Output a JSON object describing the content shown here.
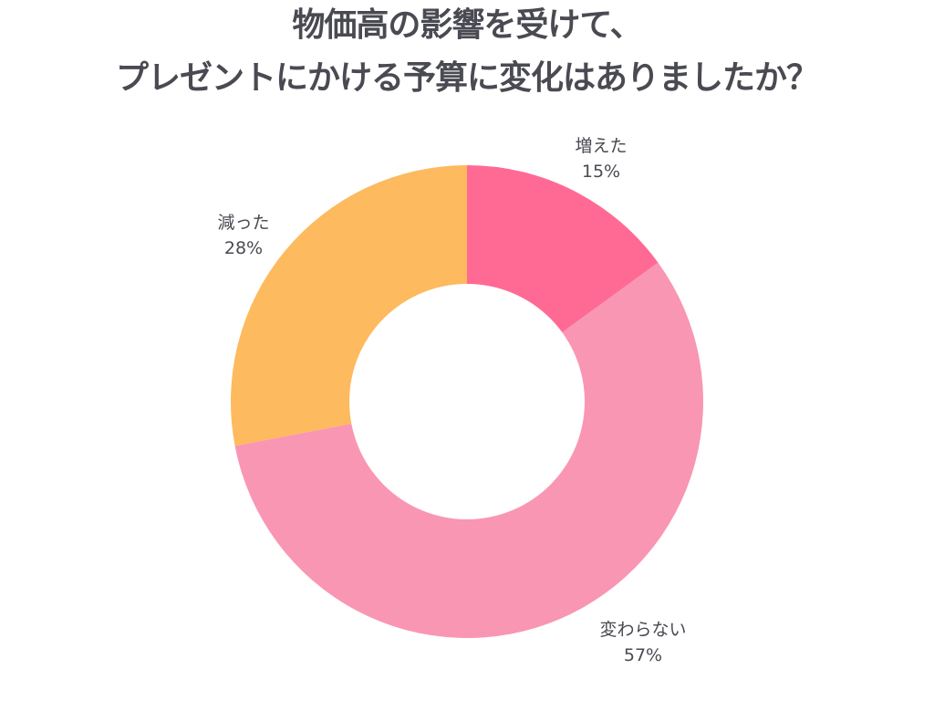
{
  "title": {
    "line1": "物価高の影響を受けて、",
    "line2": "プレゼントにかける予算に変化はありましたか？"
  },
  "labels": [
    {
      "name": "増えた",
      "pct": "15%"
    },
    {
      "name": "変わらない",
      "pct": "57%"
    },
    {
      "name": "減った",
      "pct": "28%"
    }
  ],
  "colors": {
    "increased": "#FF6A95",
    "unchanged": "#F996B4",
    "decreased": "#FDBA5E",
    "text": "#4a4a52"
  },
  "chart_data": {
    "type": "pie",
    "subtype": "donut",
    "title": "物価高の影響を受けて、プレゼントにかける予算に変化はありましたか？",
    "categories": [
      "増えた",
      "変わらない",
      "減った"
    ],
    "values": [
      15,
      57,
      28
    ],
    "unit": "%",
    "colors": [
      "#FF6A95",
      "#F996B4",
      "#FDBA5E"
    ],
    "start_angle": "12 o'clock, clockwise",
    "legend": "none (direct labels)"
  }
}
